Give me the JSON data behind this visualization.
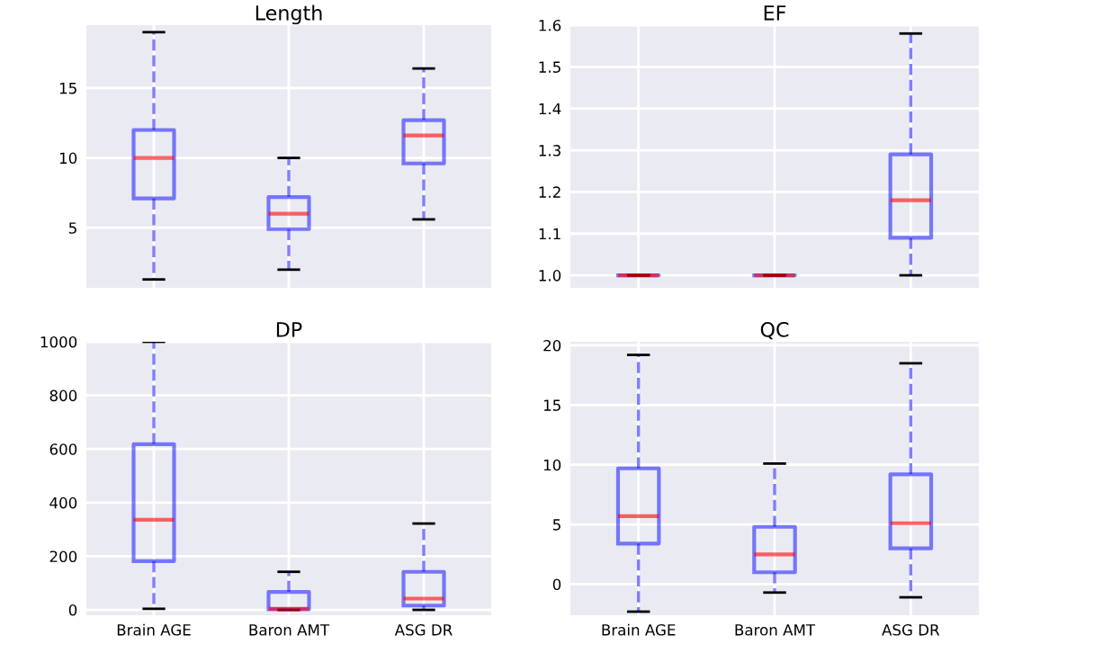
{
  "chart_data": [
    {
      "type": "box",
      "title": "Length",
      "categories": [
        null,
        null,
        null
      ],
      "tick_labels": "y",
      "grid": true,
      "ylim": [
        0.7,
        19.5
      ],
      "yticks": [
        5,
        10,
        15
      ],
      "boxes": [
        {
          "low": 1.3,
          "q1": 7.1,
          "median": 10,
          "q3": 12.0,
          "high": 19.0
        },
        {
          "low": 2.0,
          "q1": 4.9,
          "median": 6.0,
          "q3": 7.2,
          "high": 10
        },
        {
          "low": 5.6,
          "q1": 9.6,
          "median": 11.6,
          "q3": 12.7,
          "high": 16.4
        }
      ]
    },
    {
      "type": "box",
      "title": "EF",
      "categories": [
        null,
        null,
        null
      ],
      "tick_labels": "y",
      "grid": true,
      "ylim": [
        0.97,
        1.6
      ],
      "yticks": [
        {
          "value": 1.0,
          "label": "1.0"
        },
        1.1,
        1.2,
        1.3,
        1.4,
        1.5,
        1.6
      ],
      "boxes": [
        {
          "low": 1.0,
          "q1": 1.0,
          "median": 1.0,
          "q3": 1.0,
          "high": 1.0
        },
        {
          "low": 1.0,
          "q1": 1.0,
          "median": 1.0,
          "q3": 1.0,
          "high": 1.0
        },
        {
          "low": 1.0,
          "q1": 1.09,
          "median": 1.18,
          "q3": 1.29,
          "high": 1.58
        }
      ]
    },
    {
      "type": "box",
      "title": "DP",
      "categories": [
        "Brain AGE",
        "Baron AMT",
        "ASG DR"
      ],
      "grid": true,
      "ylim": [
        -20,
        1000
      ],
      "yticks": [
        0,
        200,
        400,
        600,
        800,
        1000
      ],
      "boxes": [
        {
          "low": 4,
          "q1": 182,
          "median": 336,
          "q3": 618,
          "high": 1000
        },
        {
          "low": 0,
          "q1": 2,
          "median": 4,
          "q3": 67,
          "high": 142
        },
        {
          "low": 0,
          "q1": 16,
          "median": 42,
          "q3": 142,
          "high": 322
        }
      ]
    },
    {
      "type": "box",
      "title": "QC",
      "categories": [
        "Brain AGE",
        "Baron AMT",
        "ASG DR"
      ],
      "grid": true,
      "ylim": [
        -2.6,
        20.3
      ],
      "yticks": [
        0,
        5,
        10,
        15,
        20
      ],
      "boxes": [
        {
          "low": -2.3,
          "q1": 3.4,
          "median": 5.7,
          "q3": 9.7,
          "high": 19.2
        },
        {
          "low": -0.7,
          "q1": 1.0,
          "median": 2.5,
          "q3": 4.8,
          "high": 10.1
        },
        {
          "low": -1.1,
          "q1": 3.0,
          "median": 5.1,
          "q3": 9.2,
          "high": 18.5
        }
      ]
    }
  ]
}
